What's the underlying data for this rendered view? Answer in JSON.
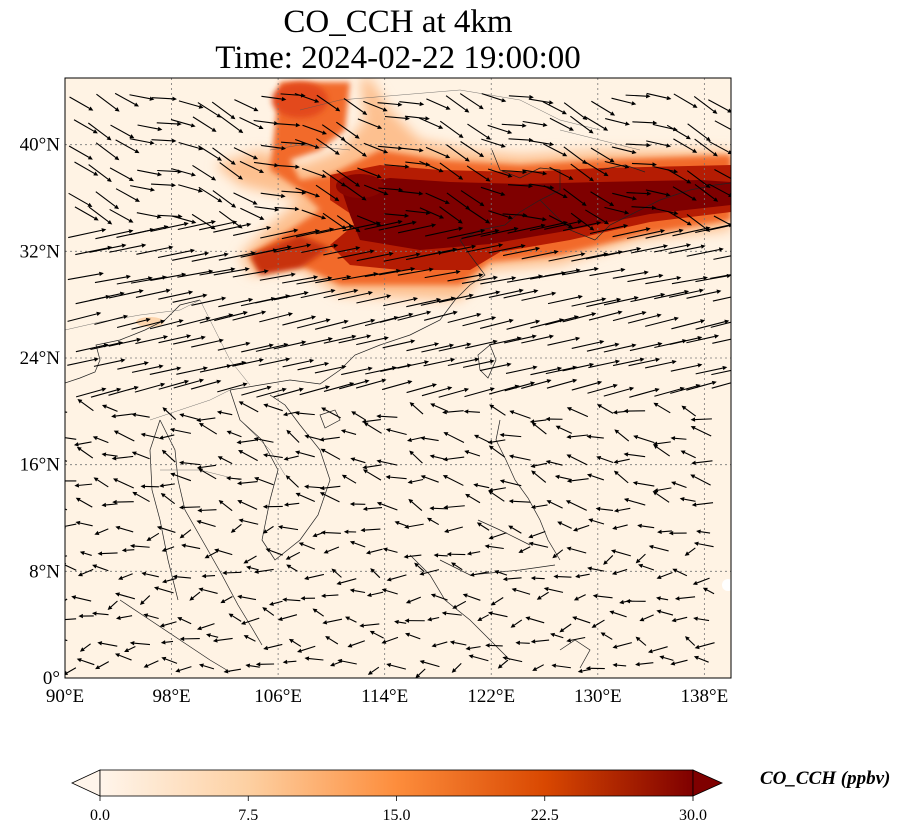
{
  "title": {
    "line1": "CO_CCH at 4km",
    "line2": "Time: 2024-02-22 19:00:00"
  },
  "map": {
    "region": "East and Southeast Asia",
    "variable": "CO_CCH",
    "level": "4km",
    "lon_range": [
      90,
      140
    ],
    "lat_range": [
      0,
      45
    ],
    "lon_ticks": [
      {
        "value": 90,
        "label": "90°E"
      },
      {
        "value": 98,
        "label": "98°E"
      },
      {
        "value": 106,
        "label": "106°E"
      },
      {
        "value": 114,
        "label": "114°E"
      },
      {
        "value": 122,
        "label": "122°E"
      },
      {
        "value": 130,
        "label": "130°E"
      },
      {
        "value": 138,
        "label": "138°E"
      }
    ],
    "lat_ticks": [
      {
        "value": 0,
        "label": "0°"
      },
      {
        "value": 8,
        "label": "8°N"
      },
      {
        "value": 16,
        "label": "16°N"
      },
      {
        "value": 24,
        "label": "24°N"
      },
      {
        "value": 32,
        "label": "32°N"
      },
      {
        "value": 40,
        "label": "40°N"
      }
    ],
    "gridlines": true,
    "overlay": "wind-vectors"
  },
  "colorbar": {
    "label": "CO_CCH (ppbv)",
    "min": 0.0,
    "max": 30.0,
    "ticks": [
      {
        "value": 0.0,
        "label": "0.0"
      },
      {
        "value": 7.5,
        "label": "7.5"
      },
      {
        "value": 15.0,
        "label": "15.0"
      },
      {
        "value": 22.5,
        "label": "22.5"
      },
      {
        "value": 30.0,
        "label": "30.0"
      }
    ],
    "colors": [
      "#fff5eb",
      "#fdd0a2",
      "#fd8d3c",
      "#d94801",
      "#7f0000"
    ]
  }
}
